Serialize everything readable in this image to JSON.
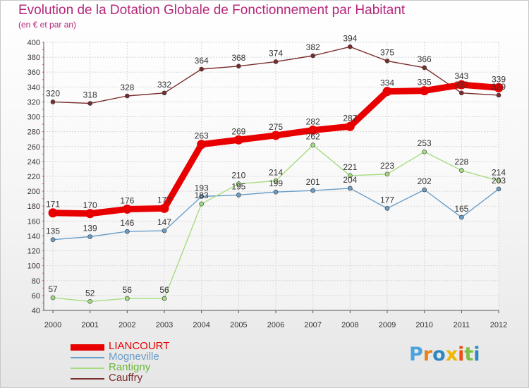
{
  "title": "Evolution de la Dotation Globale de Fonctionnement par Habitant",
  "subtitle": "(en € et par an)",
  "logo": {
    "text": "Proxiti",
    "letter_colors": [
      "#4aa3df",
      "#e8831a",
      "#2e86c1",
      "#f0b700",
      "#e94e1b",
      "#7ac143",
      "#2e86c1"
    ]
  },
  "chart_data": {
    "type": "line",
    "title": "Evolution de la Dotation Globale de Fonctionnement par Habitant",
    "ylabel": "(en € et par an)",
    "xlabel": "",
    "x": [
      "2000",
      "2001",
      "2002",
      "2003",
      "2004",
      "2005",
      "2006",
      "2007",
      "2008",
      "2009",
      "2010",
      "2011",
      "2012"
    ],
    "ylim": [
      40,
      400
    ],
    "yticks": [
      40,
      60,
      80,
      100,
      120,
      140,
      160,
      180,
      200,
      220,
      240,
      260,
      280,
      300,
      320,
      340,
      360,
      380,
      400
    ],
    "grid": true,
    "legend_position": "bottom-left",
    "series": [
      {
        "name": "LIANCOURT",
        "color": "#e80000",
        "emphasis": true,
        "values": [
          171,
          170,
          176,
          177,
          263,
          269,
          275,
          282,
          287,
          334,
          335,
          343,
          339
        ]
      },
      {
        "name": "Mogneville",
        "color": "#6a9ec9",
        "emphasis": false,
        "values": [
          135,
          139,
          146,
          147,
          193,
          195,
          199,
          201,
          204,
          177,
          202,
          165,
          203
        ]
      },
      {
        "name": "Rantigny",
        "color": "#a6dc80",
        "emphasis": false,
        "values": [
          57,
          52,
          56,
          56,
          183,
          210,
          214,
          262,
          221,
          223,
          253,
          228,
          214
        ]
      },
      {
        "name": "Cauffry",
        "color": "#7a2d2d",
        "emphasis": false,
        "values": [
          320,
          318,
          328,
          332,
          364,
          368,
          374,
          382,
          394,
          375,
          366,
          332,
          329
        ]
      }
    ]
  }
}
